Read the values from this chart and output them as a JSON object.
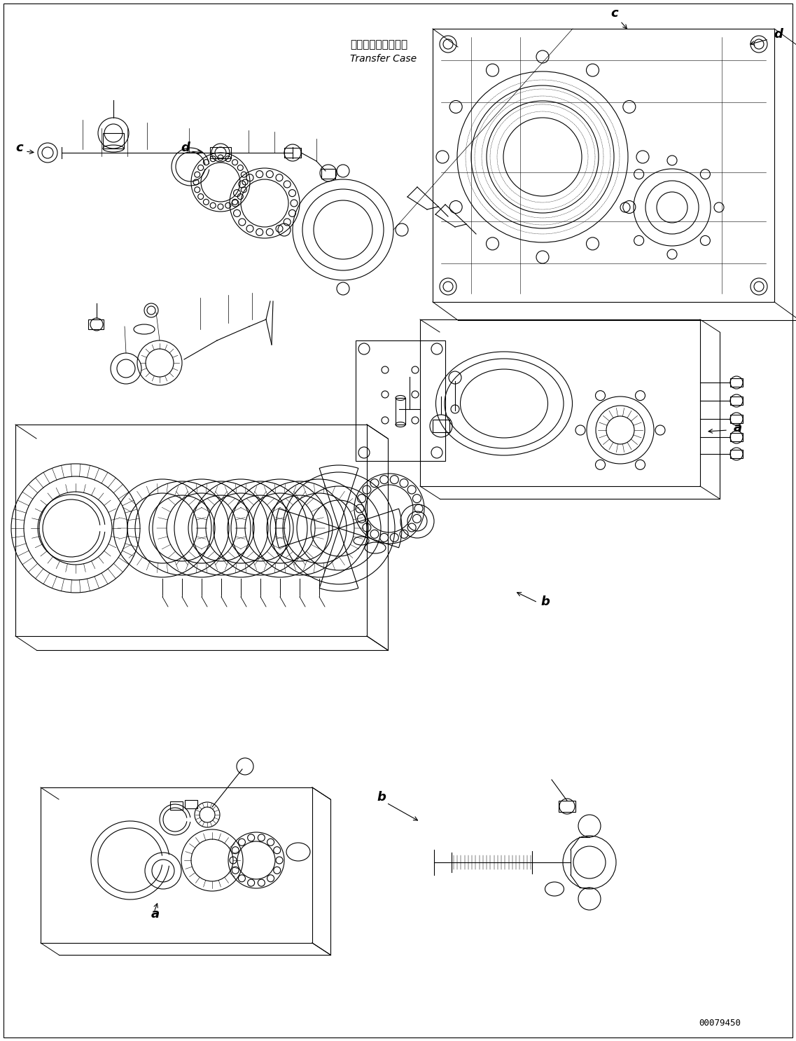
{
  "bg": "#ffffff",
  "lc": "#000000",
  "lw": 0.8,
  "image_number": "00079450",
  "label_jp": "トランスファケース",
  "label_en": "Transfer Case"
}
